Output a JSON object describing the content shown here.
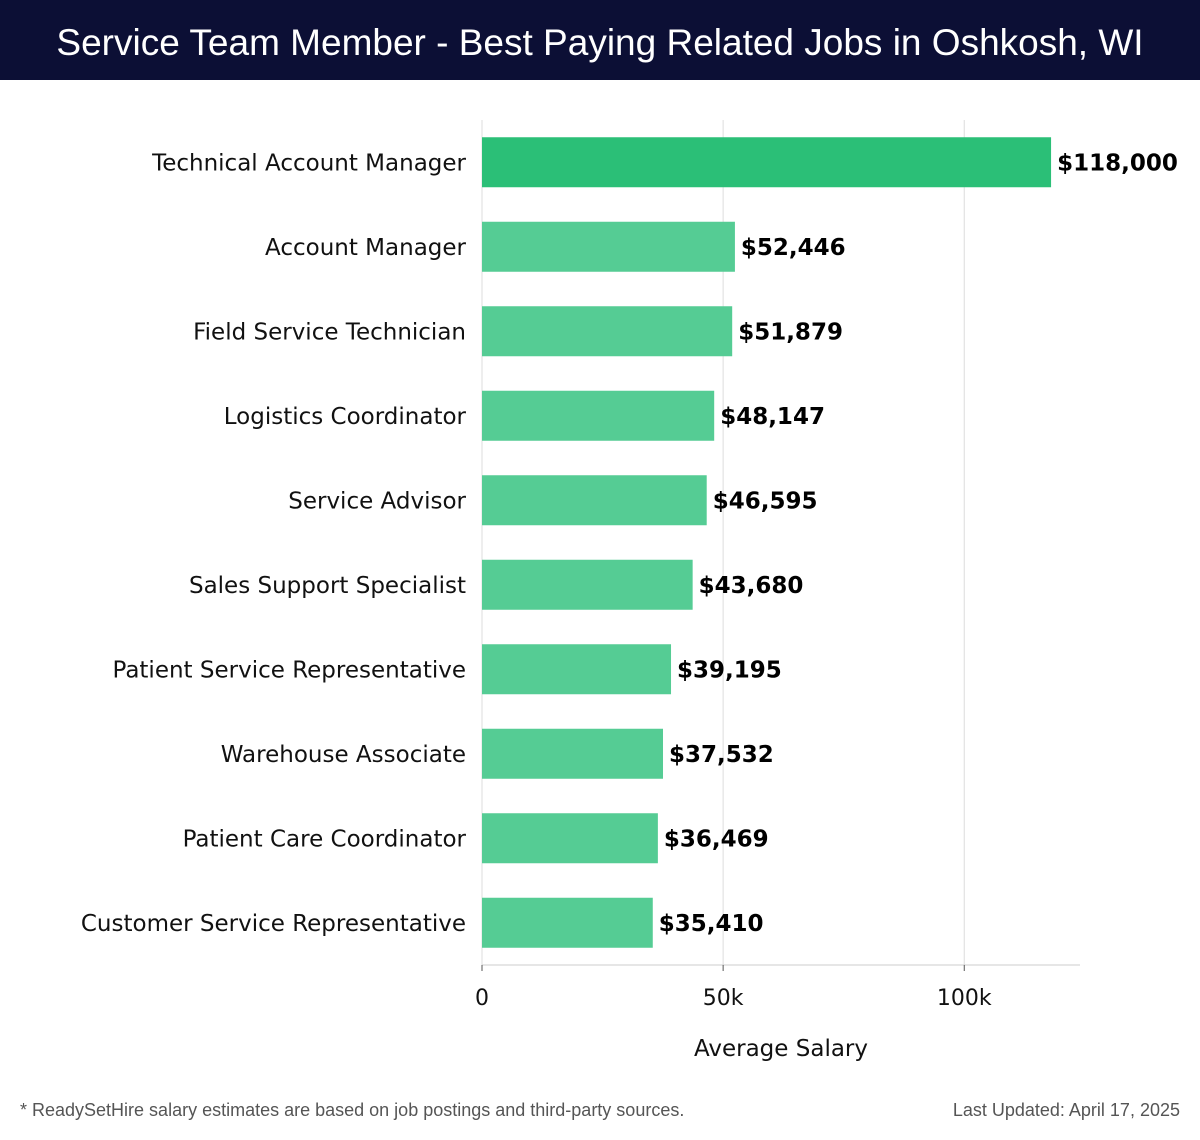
{
  "header": {
    "title": "Service Team Member - Best Paying Related Jobs in Oshkosh, WI"
  },
  "colors": {
    "header_bg": "#0c0f35",
    "top_bar": "#2bbf77",
    "bar": "#55cc94"
  },
  "chart_data": {
    "type": "bar",
    "orientation": "horizontal",
    "title": "Service Team Member - Best Paying Related Jobs in Oshkosh, WI",
    "xlabel": "Average Salary",
    "ylabel": "",
    "xlim": [
      0,
      124000
    ],
    "xticks": [
      0,
      50000,
      100000
    ],
    "xtick_labels": [
      "0",
      "50k",
      "100k"
    ],
    "grid": "vertical",
    "categories": [
      "Technical Account Manager",
      "Account Manager",
      "Field Service Technician",
      "Logistics Coordinator",
      "Service Advisor",
      "Sales Support Specialist",
      "Patient Service Representative",
      "Warehouse Associate",
      "Patient Care Coordinator",
      "Customer Service Representative"
    ],
    "values": [
      118000,
      52446,
      51879,
      48147,
      46595,
      43680,
      39195,
      37532,
      36469,
      35410
    ],
    "value_labels": [
      "$118,000",
      "$52,446",
      "$51,879",
      "$48,147",
      "$46,595",
      "$43,680",
      "$39,195",
      "$37,532",
      "$36,469",
      "$35,410"
    ]
  },
  "footer": {
    "note": "* ReadySetHire salary estimates are based on job postings and third-party sources.",
    "updated": "Last Updated: April 17, 2025"
  }
}
